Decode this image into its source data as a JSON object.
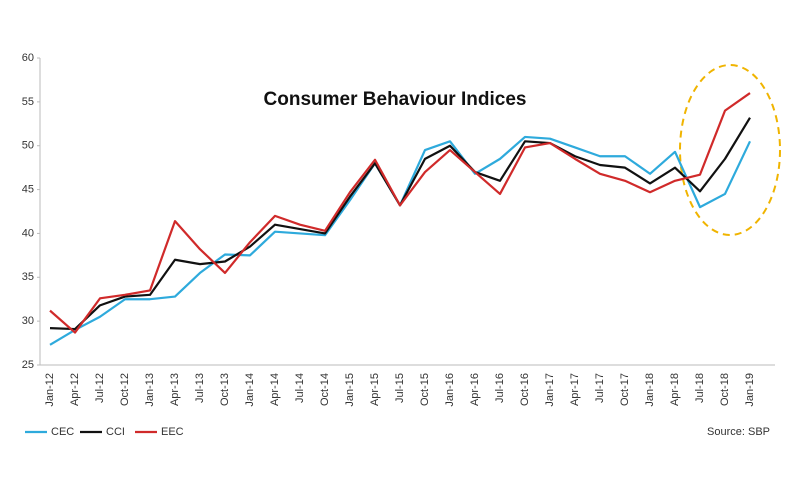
{
  "chart_data": {
    "type": "line",
    "title": "Consumer Behaviour Indices",
    "source": "Source: SBP",
    "categories": [
      "Jan-12",
      "Apr-12",
      "Jul-12",
      "Oct-12",
      "Jan-13",
      "Apr-13",
      "Jul-13",
      "Oct-13",
      "Jan-14",
      "Apr-14",
      "Jul-14",
      "Oct-14",
      "Jan-15",
      "Apr-15",
      "Jul-15",
      "Oct-15",
      "Jan-16",
      "Apr-16",
      "Jul-16",
      "Oct-16",
      "Jan-17",
      "Apr-17",
      "Jul-17",
      "Oct-17",
      "Jan-18",
      "Apr-18",
      "Jul-18",
      "Oct-18",
      "Jan-19"
    ],
    "series": [
      {
        "name": "CEC",
        "color": "#2eaadc",
        "values": [
          27.3,
          29,
          30.5,
          32.5,
          32.5,
          32.8,
          35.5,
          37.6,
          37.5,
          40.2,
          40,
          39.8,
          43.8,
          48,
          43.2,
          49.5,
          50.5,
          46.8,
          48.5,
          51,
          50.8,
          49.8,
          48.8,
          48.8,
          46.8,
          49.3,
          43,
          44.5,
          50.5
        ]
      },
      {
        "name": "CCI",
        "color": "#111111",
        "values": [
          29.2,
          29.1,
          31.8,
          32.8,
          33,
          37,
          36.5,
          36.8,
          38.5,
          41,
          40.5,
          40,
          44.2,
          48,
          43.2,
          48.5,
          50,
          47,
          46,
          50.5,
          50.3,
          48.8,
          47.8,
          47.5,
          45.7,
          47.5,
          44.8,
          48.5,
          53.2
        ]
      },
      {
        "name": "EEC",
        "color": "#d02a2a",
        "values": [
          31.2,
          28.7,
          32.6,
          33,
          33.5,
          41.4,
          38.2,
          35.5,
          39,
          42,
          41,
          40.3,
          44.7,
          48.4,
          43.2,
          47,
          49.5,
          47,
          44.5,
          49.8,
          50.3,
          48.5,
          46.8,
          46,
          44.7,
          46,
          46.7,
          54,
          56
        ]
      }
    ],
    "ylim": [
      25,
      60
    ],
    "yticks": [
      25,
      30,
      35,
      40,
      45,
      50,
      55,
      60
    ],
    "grid": false,
    "legend": "bottom-left"
  }
}
